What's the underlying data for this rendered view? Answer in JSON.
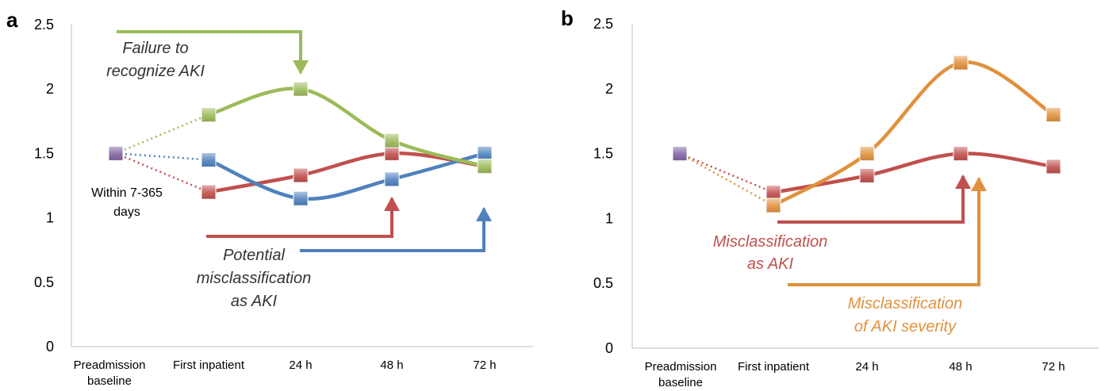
{
  "chart_data": [
    {
      "panel_label": "a",
      "type": "line",
      "categories": [
        "Preadmission\nbaseline",
        "First inpatient",
        "24 h",
        "48 h",
        "72 h"
      ],
      "ylim": [
        0,
        2.5
      ],
      "yticks": [
        "0",
        "0.5",
        "1",
        "1.5",
        "2",
        "2.5"
      ],
      "grid": false,
      "baseline_value": 1.5,
      "series": [
        {
          "color": "#9bbb59",
          "values": [
            1.5,
            1.8,
            2.0,
            1.6,
            1.4
          ]
        },
        {
          "color": "#4f81bd",
          "values": [
            1.5,
            1.45,
            1.15,
            1.3,
            1.5
          ]
        },
        {
          "color": "#c0504d",
          "values": [
            1.5,
            1.2,
            1.33,
            1.5,
            1.4
          ]
        }
      ],
      "annotations": [
        {
          "lines": [
            "Failure to",
            "recognize AKI"
          ],
          "color": "#333333",
          "italic": true
        },
        {
          "lines": [
            "Within 7-365",
            "days"
          ],
          "color": "#000000",
          "italic": false
        },
        {
          "lines": [
            "Potential",
            "misclassification",
            "as AKI"
          ],
          "color": "#333333",
          "italic": true
        }
      ]
    },
    {
      "panel_label": "b",
      "type": "line",
      "categories": [
        "Preadmission\nbaseline",
        "First inpatient",
        "24 h",
        "48 h",
        "72 h"
      ],
      "ylim": [
        0,
        2.5
      ],
      "yticks": [
        "0",
        "0.5",
        "1",
        "1.5",
        "2",
        "2.5"
      ],
      "grid": false,
      "baseline_value": 1.5,
      "series": [
        {
          "color": "#e0913c",
          "values": [
            1.5,
            1.1,
            1.5,
            2.2,
            1.8
          ]
        },
        {
          "color": "#c0504d",
          "values": [
            1.5,
            1.2,
            1.33,
            1.5,
            1.4
          ]
        }
      ],
      "annotations": [
        {
          "lines": [
            "Misclassification",
            "as AKI"
          ],
          "color": "#c0504d",
          "italic": true
        },
        {
          "lines": [
            "Misclassification",
            "of AKI severity"
          ],
          "color": "#e0913c",
          "italic": true
        }
      ]
    }
  ],
  "colors": {
    "baseline_marker": "#8064a2",
    "axis": "#bfbfbf"
  }
}
